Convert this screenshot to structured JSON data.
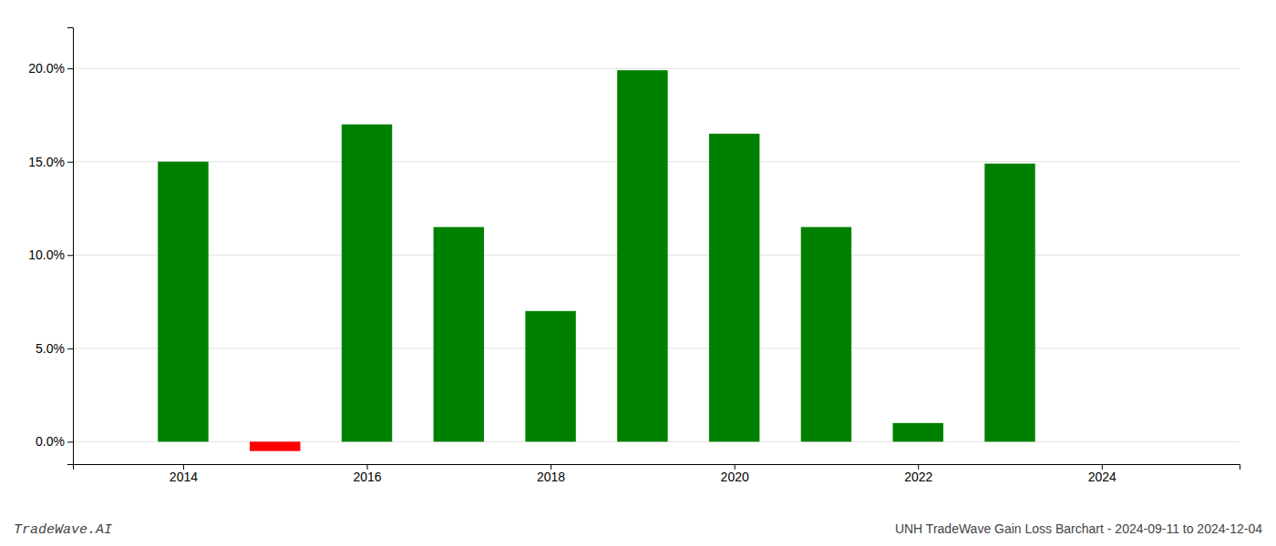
{
  "chart_data": {
    "type": "bar",
    "title": "UNH TradeWave Gain Loss Barchart - 2024-09-11 to 2024-12-04",
    "annotations": [
      "TradeWave.AI"
    ],
    "x": [
      2014,
      2015,
      2016,
      2017,
      2018,
      2019,
      2020,
      2021,
      2022,
      2023
    ],
    "values": [
      0.15,
      -0.005,
      0.17,
      0.115,
      0.07,
      0.199,
      0.165,
      0.115,
      0.01,
      0.149
    ],
    "colors": [
      "#008000",
      "#ff0000",
      "#008000",
      "#008000",
      "#008000",
      "#008000",
      "#008000",
      "#008000",
      "#008000",
      "#008000"
    ],
    "xlim": [
      2012.8,
      2025.5
    ],
    "xticks": [
      2014,
      2016,
      2018,
      2020,
      2022,
      2024
    ],
    "ylim": [
      -0.012,
      0.222
    ],
    "yticks": [
      {
        "value": 0.0,
        "label": "0.0%"
      },
      {
        "value": 0.05,
        "label": "5.0%"
      },
      {
        "value": 0.1,
        "label": "10.0%"
      },
      {
        "value": 0.15,
        "label": "15.0%"
      },
      {
        "value": 0.2,
        "label": "20.0%"
      }
    ],
    "grid": true
  }
}
